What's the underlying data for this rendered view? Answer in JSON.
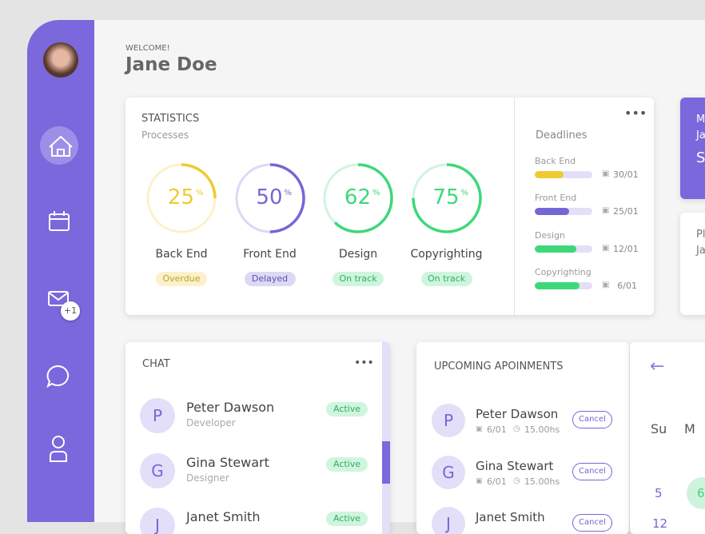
{
  "header": {
    "welcome": "WELCOME!",
    "name": "Jane Doe"
  },
  "sidebar": {
    "badge": "+1"
  },
  "statistics": {
    "title": "STATISTICS",
    "subtitle": "Processes",
    "items": [
      {
        "label": "Back End",
        "value": 25,
        "unit": "%",
        "status": "Overdue",
        "color": "#eecb2f"
      },
      {
        "label": "Front End",
        "value": 50,
        "unit": "%",
        "status": "Delayed",
        "color": "#7566d6"
      },
      {
        "label": "Design",
        "value": 62,
        "unit": "%",
        "status": "On track",
        "color": "#3ed87a"
      },
      {
        "label": "Copyrighting",
        "value": 75,
        "unit": "%",
        "status": "On track",
        "color": "#3ed87a"
      }
    ]
  },
  "deadlines": {
    "title": "Deadlines",
    "items": [
      {
        "label": "Back End",
        "progress": 50,
        "date": "30/01",
        "color": "#eecb2f"
      },
      {
        "label": "Front End",
        "progress": 60,
        "date": "25/01",
        "color": "#7566d6"
      },
      {
        "label": "Design",
        "progress": 72,
        "date": "12/01",
        "color": "#3ed87a"
      },
      {
        "label": "Copyrighting",
        "progress": 78,
        "date": "6/01",
        "color": "#3ed87a"
      }
    ]
  },
  "side_cards": [
    {
      "lines": [
        "M",
        "Ja",
        "S"
      ]
    },
    {
      "lines": [
        "Pl",
        "Ja"
      ]
    }
  ],
  "chat": {
    "title": "CHAT",
    "contacts": [
      {
        "initial": "P",
        "name": "Peter Dawson",
        "role": "Developer",
        "status": "Active"
      },
      {
        "initial": "G",
        "name": "Gina Stewart",
        "role": "Designer",
        "status": "Active"
      },
      {
        "initial": "J",
        "name": "Janet Smith",
        "status": "Active"
      }
    ]
  },
  "appointments": {
    "title": "UPCOMING APOINMENTS",
    "items": [
      {
        "initial": "P",
        "name": "Peter Dawson",
        "date": "6/01",
        "time": "15.00hs",
        "action": "Cancel"
      },
      {
        "initial": "G",
        "name": "Gina Stewart",
        "date": "6/01",
        "time": "15.00hs",
        "action": "Cancel"
      },
      {
        "initial": "J",
        "name": "Janet Smith",
        "action": "Cancel"
      }
    ]
  },
  "calendar": {
    "days": [
      "Su",
      "M"
    ],
    "dates": [
      "5",
      "6",
      "12"
    ]
  }
}
